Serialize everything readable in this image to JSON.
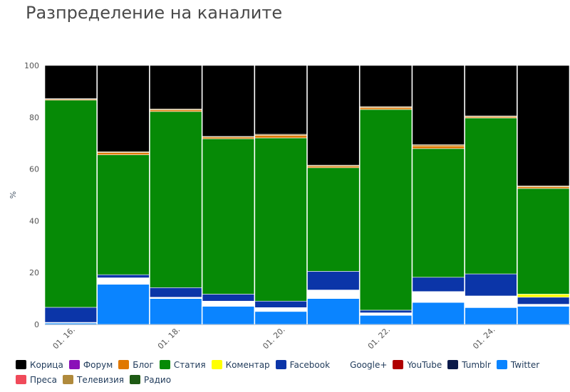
{
  "chart_data": {
    "type": "bar",
    "stacked": true,
    "title": "Разпределение на каналите",
    "ylabel": "%",
    "xlabel": "",
    "ylim": [
      0,
      100
    ],
    "yticks": [
      0,
      20,
      40,
      60,
      80,
      100
    ],
    "categories": [
      "01. 16.",
      "01. 17.",
      "01. 18.",
      "01. 19.",
      "01. 20.",
      "01. 21.",
      "01. 22.",
      "01. 23.",
      "01. 24.",
      "01. 25."
    ],
    "xtick_labels": [
      "01. 16.",
      "01. 18.",
      "01. 20.",
      "01. 22.",
      "01. 24."
    ],
    "legend_position": "bottom",
    "series": [
      {
        "name": "Twitter",
        "color": "#0a84ff",
        "values": [
          0.5,
          15.5,
          10,
          7,
          5,
          10,
          3.5,
          8.5,
          6.5,
          7
        ]
      },
      {
        "name": "Google+",
        "color": "#ffffff",
        "values": [
          0.3,
          2.5,
          0.5,
          2,
          1.5,
          3.3,
          1,
          4.2,
          4.5,
          0.8
        ]
      },
      {
        "name": "Facebook",
        "color": "#0b35a8",
        "values": [
          5.8,
          1.2,
          3.7,
          2.7,
          2.5,
          7.2,
          1,
          5.5,
          8.5,
          2.7
        ]
      },
      {
        "name": "Коментар",
        "color": "#ffff00",
        "values": [
          0,
          0,
          0,
          0,
          0,
          0,
          0,
          0,
          0,
          1.2
        ]
      },
      {
        "name": "Статия",
        "color": "#068a06",
        "values": [
          80,
          46.3,
          68,
          60,
          63,
          40,
          77.5,
          49.7,
          60.2,
          40.8
        ]
      },
      {
        "name": "Блог",
        "color": "#e07800",
        "values": [
          0.3,
          0.8,
          0.6,
          0.6,
          1,
          0.6,
          0.7,
          1,
          0.5,
          0.6
        ]
      },
      {
        "name": "Телевизия",
        "color": "#b08a3c",
        "values": [
          0.3,
          0.4,
          0.4,
          0.3,
          0.4,
          0.4,
          0.4,
          0.5,
          0.3,
          0.4
        ]
      },
      {
        "name": "Корица",
        "color": "#000000",
        "values": [
          12.8,
          33.3,
          16.8,
          27.4,
          26.6,
          38.5,
          15.9,
          30.6,
          19.5,
          46.5
        ]
      }
    ],
    "legend": [
      {
        "name": "Корица",
        "color": "#000000"
      },
      {
        "name": "Форум",
        "color": "#8a10b8"
      },
      {
        "name": "Блог",
        "color": "#e07800"
      },
      {
        "name": "Статия",
        "color": "#068a06"
      },
      {
        "name": "Коментар",
        "color": "#ffff00"
      },
      {
        "name": "Facebook",
        "color": "#0b35a8"
      },
      {
        "name": "Google+",
        "color": "#ffffff"
      },
      {
        "name": "YouTube",
        "color": "#b00000"
      },
      {
        "name": "Tumblr",
        "color": "#0b1a4a"
      },
      {
        "name": "Twitter",
        "color": "#0a84ff"
      },
      {
        "name": "Преса",
        "color": "#f04a5a"
      },
      {
        "name": "Телевизия",
        "color": "#b08a3c"
      },
      {
        "name": "Радио",
        "color": "#1e5a14"
      }
    ]
  }
}
